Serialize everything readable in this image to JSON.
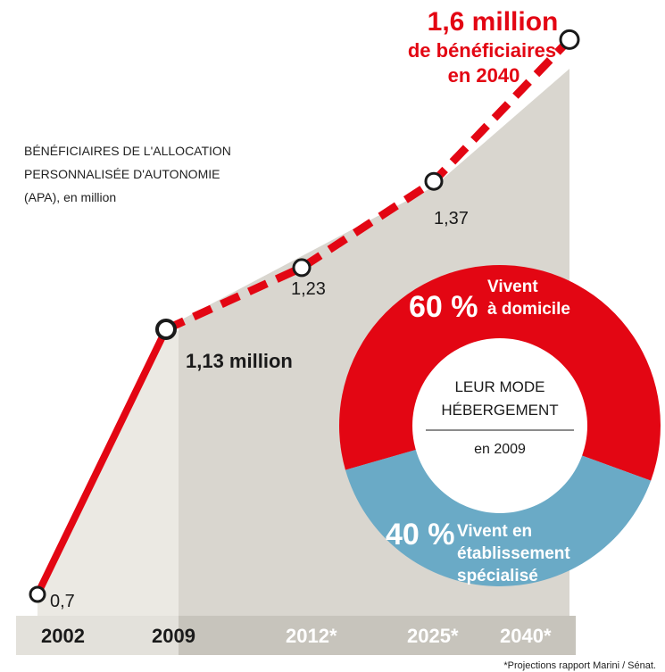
{
  "colors": {
    "line": "#e30613",
    "domicile": "#e30613",
    "etablissement": "#6aaac6",
    "shade": "#d9d6cf",
    "shade_light": "#ebe9e3",
    "year_band_dark": "#c7c4bc",
    "year_band_light": "#e3e1db"
  },
  "description": {
    "line1": "BÉNÉFICIAIRES DE L'ALLOCATION",
    "line2": "PERSONNALISÉE D'AUTONOMIE",
    "line3": "(APA), en million"
  },
  "headline": {
    "line1": "1,6 million",
    "line2": "de bénéficiaires",
    "line3": "en 2040"
  },
  "chart_data": {
    "type": "line",
    "x": [
      "2002",
      "2009",
      "2012*",
      "2025*",
      "2040*"
    ],
    "values": [
      0.7,
      1.13,
      1.23,
      1.37,
      1.6
    ],
    "value_labels": [
      "0,7",
      "1,13 million",
      "1,23",
      "1,37",
      ""
    ],
    "projected_from_index": 1
  },
  "donut": {
    "center_line1": "LEUR MODE",
    "center_line2": "HÉBERGEMENT",
    "center_year": "en 2009",
    "domicile_pct": "60 %",
    "domicile_label1": "Vivent",
    "domicile_label2": "à domicile",
    "domicile_value": 60,
    "etab_pct": "40 %",
    "etab_label1": "Vivent en",
    "etab_label2": "établissement",
    "etab_label3": "spécialisé",
    "etab_value": 40
  },
  "footnote": "*Projections rapport Marini / Sénat."
}
